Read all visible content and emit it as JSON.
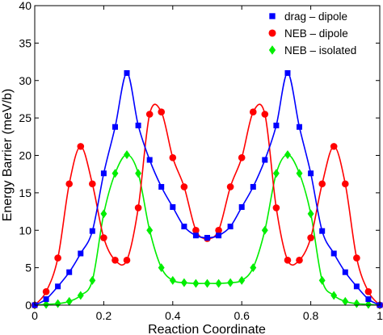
{
  "chart_data": {
    "type": "line",
    "title": "",
    "xlabel": "Reaction Coordinate",
    "ylabel": "Energy Barrier (meV/b)",
    "xlim": [
      0,
      1
    ],
    "ylim": [
      0,
      40
    ],
    "xticks": [
      0,
      0.2,
      0.4,
      0.6,
      0.8,
      1
    ],
    "xtick_labels": [
      "0",
      "0.2",
      "0.4",
      "0.6",
      "0.8",
      "1"
    ],
    "yticks": [
      0,
      5,
      10,
      15,
      20,
      25,
      30,
      35,
      40
    ],
    "ytick_labels": [
      "0",
      "5",
      "10",
      "15",
      "20",
      "25",
      "30",
      "35",
      "40"
    ],
    "grid": false,
    "legend_position": "top-right",
    "series": [
      {
        "name": "drag – dipole",
        "color": "#0000ff",
        "marker": "square",
        "x": [
          0,
          0.033,
          0.067,
          0.1,
          0.133,
          0.167,
          0.2,
          0.233,
          0.267,
          0.3,
          0.333,
          0.367,
          0.4,
          0.433,
          0.467,
          0.5,
          0.533,
          0.567,
          0.6,
          0.633,
          0.667,
          0.7,
          0.733,
          0.767,
          0.8,
          0.833,
          0.867,
          0.9,
          0.933,
          0.967,
          1
        ],
        "y": [
          0,
          0.8,
          2.5,
          4.4,
          6.9,
          9.9,
          17.6,
          23.8,
          31.0,
          24.0,
          19.4,
          15.8,
          13.1,
          10.5,
          9.3,
          9.0,
          9.3,
          10.5,
          13.1,
          15.8,
          19.4,
          24.0,
          31.0,
          23.8,
          17.6,
          9.9,
          6.9,
          4.4,
          2.5,
          0.8,
          0
        ]
      },
      {
        "name": "NEB – dipole",
        "color": "#ff0000",
        "marker": "circle",
        "x": [
          0,
          0.033,
          0.067,
          0.1,
          0.133,
          0.167,
          0.2,
          0.233,
          0.267,
          0.3,
          0.333,
          0.367,
          0.4,
          0.433,
          0.467,
          0.5,
          0.533,
          0.567,
          0.6,
          0.633,
          0.667,
          0.7,
          0.733,
          0.767,
          0.8,
          0.833,
          0.867,
          0.9,
          0.933,
          0.967,
          1
        ],
        "y": [
          0,
          1.8,
          6.3,
          16.2,
          21.2,
          16.2,
          9.0,
          6.0,
          6.0,
          13.0,
          25.5,
          25.8,
          19.7,
          15.8,
          10.0,
          8.9,
          10.0,
          15.8,
          19.7,
          25.8,
          25.5,
          13.0,
          6.0,
          6.0,
          9.0,
          16.2,
          21.2,
          16.2,
          6.3,
          1.8,
          0
        ]
      },
      {
        "name": "NEB – isolated",
        "color": "#00ee00",
        "marker": "diamond",
        "x": [
          0,
          0.033,
          0.067,
          0.1,
          0.133,
          0.167,
          0.2,
          0.233,
          0.267,
          0.3,
          0.333,
          0.367,
          0.4,
          0.433,
          0.467,
          0.5,
          0.533,
          0.567,
          0.6,
          0.633,
          0.667,
          0.7,
          0.733,
          0.767,
          0.8,
          0.833,
          0.867,
          0.9,
          0.933,
          0.967,
          1
        ],
        "y": [
          0,
          0.1,
          0.2,
          0.5,
          1.3,
          3.3,
          12.2,
          17.6,
          20.1,
          17.6,
          10.0,
          5.0,
          3.3,
          3.0,
          2.9,
          2.9,
          2.9,
          3.0,
          3.3,
          5.0,
          10.0,
          17.6,
          20.1,
          17.6,
          12.2,
          3.3,
          1.3,
          0.5,
          0.2,
          0.1,
          0
        ]
      }
    ]
  }
}
